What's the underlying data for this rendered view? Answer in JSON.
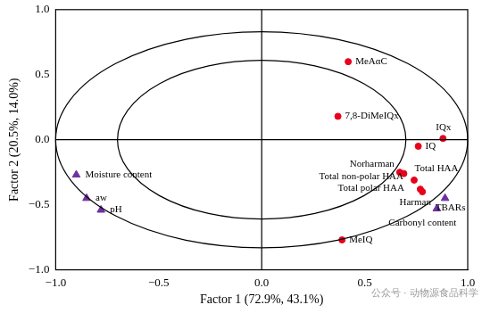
{
  "chart_data": {
    "type": "scatter",
    "x_label": "Factor 1 (72.9%, 43.1%)",
    "y_label": "Factor 2 (20.5%, 14.0%)",
    "xlim": [
      -1,
      1
    ],
    "ylim": [
      -1,
      1
    ],
    "xticks": [
      {
        "value": -1,
        "label": "−1.0"
      },
      {
        "value": -0.5,
        "label": "−0.5"
      },
      {
        "value": 0,
        "label": "0.0"
      },
      {
        "value": 0.5,
        "label": "0.5"
      },
      {
        "value": 1,
        "label": "1.0"
      }
    ],
    "yticks": [
      {
        "value": -1,
        "label": "−1.0"
      },
      {
        "value": -0.5,
        "label": "−0.5"
      },
      {
        "value": 0,
        "label": "0.0"
      },
      {
        "value": 0.5,
        "label": "0.5"
      },
      {
        "value": 1,
        "label": "1.0"
      }
    ],
    "grid": false,
    "circles": [
      {
        "rx": 1,
        "ry": 0.83
      },
      {
        "rx": 0.7,
        "ry": 0.61
      }
    ],
    "series": [
      {
        "color": "#e8001c",
        "marker": "circle",
        "points": [
          {
            "label": "MeAαC",
            "x": 0.42,
            "y": 0.6
          },
          {
            "label": "7,8-DiMeIQx",
            "x": 0.37,
            "y": 0.18
          },
          {
            "label": "IQx",
            "x": 0.88,
            "y": 0.01
          },
          {
            "label": "IQ",
            "x": 0.76,
            "y": -0.05
          },
          {
            "label": "Norharman",
            "x": 0.67,
            "y": -0.25
          },
          {
            "label": "Total HAA",
            "x": 0.69,
            "y": -0.26
          },
          {
            "label": "Total non-polar HAA",
            "x": 0.74,
            "y": -0.31
          },
          {
            "label": "Total polar HAA",
            "x": 0.77,
            "y": -0.38
          },
          {
            "label": "Harman",
            "x": 0.78,
            "y": -0.4
          },
          {
            "label": "MeIQ",
            "x": 0.39,
            "y": -0.77
          }
        ]
      },
      {
        "color": "#7030a0",
        "marker": "triangle",
        "points": [
          {
            "label": "Moisture content",
            "x": -0.9,
            "y": -0.27
          },
          {
            "label": "aw",
            "x": -0.85,
            "y": -0.45
          },
          {
            "label": "pH",
            "x": -0.78,
            "y": -0.54
          },
          {
            "label": "TBARs",
            "x": 0.89,
            "y": -0.45
          },
          {
            "label": "Carbonyl content",
            "x": 0.85,
            "y": -0.53
          }
        ]
      }
    ],
    "watermark": "公众号 · 动物源食品科学"
  }
}
